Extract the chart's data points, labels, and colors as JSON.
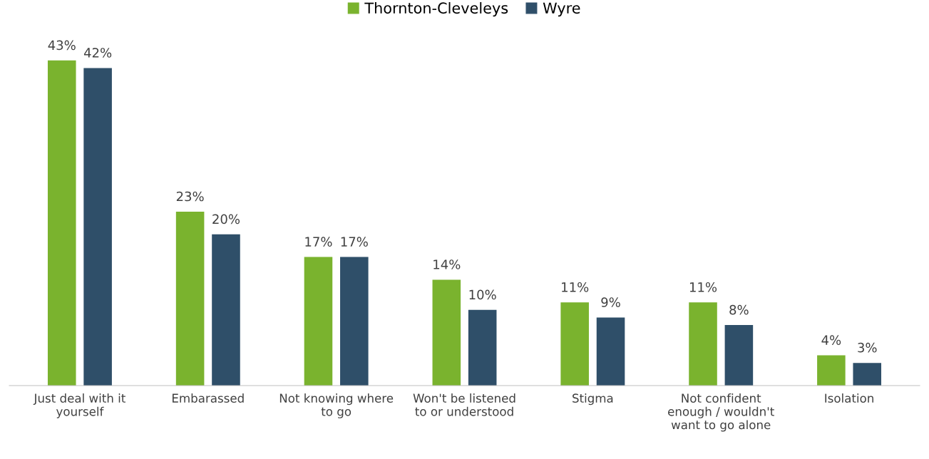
{
  "chart_data": {
    "type": "bar",
    "categories": [
      "Just deal with it yourself",
      "Embarassed",
      "Not knowing where to go",
      "Won't be listened to or understood",
      "Stigma",
      "Not confident enough / wouldn't want to go alone",
      "Isolation"
    ],
    "series": [
      {
        "name": "Thornton-Cleveleys",
        "color": "#7ab32e",
        "values": [
          43,
          23,
          17,
          14,
          11,
          11,
          4
        ],
        "value_labels": [
          "43%",
          "23%",
          "17%",
          "14%",
          "11%",
          "11%",
          "4%"
        ]
      },
      {
        "name": "Wyre",
        "color": "#2f4f69",
        "values": [
          42,
          20,
          17,
          10,
          9,
          8,
          3
        ],
        "value_labels": [
          "42%",
          "20%",
          "17%",
          "10%",
          "9%",
          "8%",
          "3%"
        ]
      }
    ],
    "legend": "top",
    "grid": false,
    "tick_labels": "x"
  }
}
